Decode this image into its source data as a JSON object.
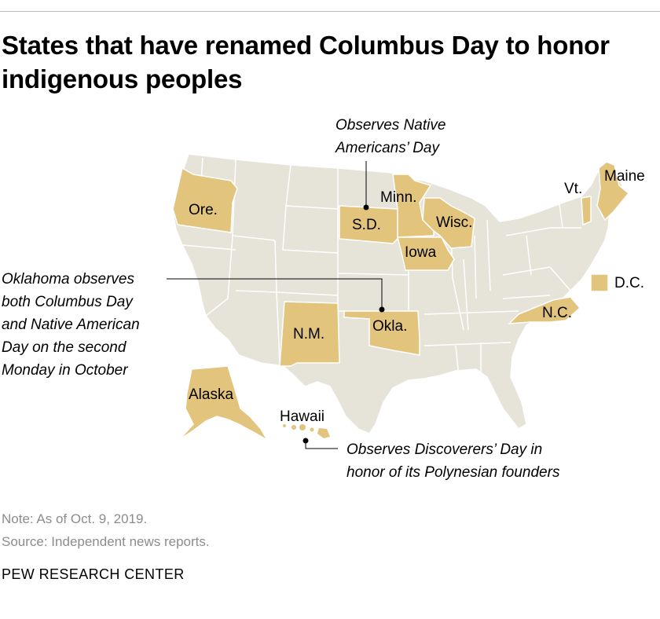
{
  "title": "States that have renamed Columbus Day to honor indigenous peoples",
  "colors": {
    "renamed": "#e2c47c",
    "other": "#e6e3d8",
    "border": "#ffffff",
    "leader": "#000000"
  },
  "states": [
    {
      "name": "Ore.",
      "renamed": true
    },
    {
      "name": "S.D.",
      "renamed": true
    },
    {
      "name": "Minn.",
      "renamed": true
    },
    {
      "name": "Wisc.",
      "renamed": true
    },
    {
      "name": "Iowa",
      "renamed": true
    },
    {
      "name": "Vt.",
      "renamed": true
    },
    {
      "name": "Maine",
      "renamed": true
    },
    {
      "name": "N.M.",
      "renamed": true
    },
    {
      "name": "Okla.",
      "renamed": true
    },
    {
      "name": "N.C.",
      "renamed": true
    },
    {
      "name": "Alaska",
      "renamed": true
    },
    {
      "name": "Hawaii",
      "renamed": true
    },
    {
      "name": "D.C.",
      "renamed": true
    }
  ],
  "annotations": {
    "sd_line1": "Observes Native",
    "sd_line2": "Americans’ Day",
    "ok_line1": "Oklahoma observes",
    "ok_line2": "both Columbus Day",
    "ok_line3": "and Native American",
    "ok_line4": "Day on the second",
    "ok_line5": "Monday in October",
    "hi_line1": "Observes Discoverers’ Day in",
    "hi_line2": "honor of its Polynesian founders"
  },
  "note": "Note: As of Oct. 9, 2019.",
  "source": "Source: Independent news reports.",
  "footer": "PEW RESEARCH CENTER"
}
